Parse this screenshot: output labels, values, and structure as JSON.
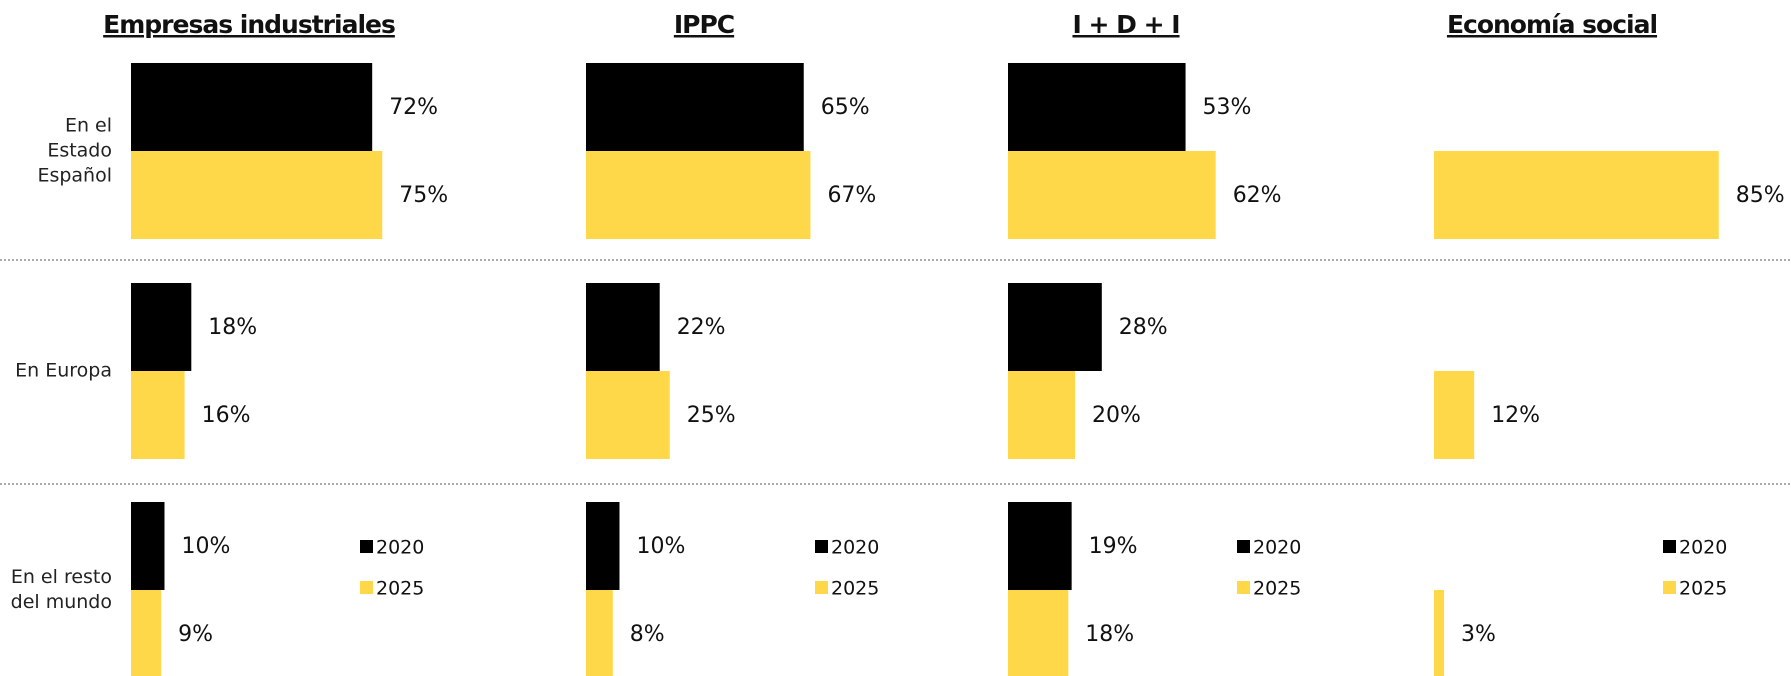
{
  "categories": [
    "En el Estado Español",
    "En Europa",
    "En el resto del mundo"
  ],
  "chart_data": [
    {
      "type": "bar",
      "orientation": "horizontal",
      "title": "Empresas industriales",
      "series": [
        {
          "name": "2020",
          "color": "#000000",
          "values": [
            72,
            18,
            10
          ],
          "value_labels": [
            "72%",
            "18%",
            "10%"
          ]
        },
        {
          "name": "2025",
          "color": "#ffd84a",
          "values": [
            75,
            16,
            9
          ],
          "value_labels": [
            "75%",
            "16%",
            "9%"
          ]
        }
      ]
    },
    {
      "type": "bar",
      "orientation": "horizontal",
      "title": "IPPC",
      "series": [
        {
          "name": "2020",
          "color": "#000000",
          "values": [
            65,
            22,
            10
          ],
          "value_labels": [
            "65%",
            "22%",
            "10%"
          ]
        },
        {
          "name": "2025",
          "color": "#ffd84a",
          "values": [
            67,
            25,
            8
          ],
          "value_labels": [
            "67%",
            "25%",
            "8%"
          ]
        }
      ]
    },
    {
      "type": "bar",
      "orientation": "horizontal",
      "title": "I + D + I",
      "series": [
        {
          "name": "2020",
          "color": "#000000",
          "values": [
            53,
            28,
            19
          ],
          "value_labels": [
            "53%",
            "28%",
            "19%"
          ]
        },
        {
          "name": "2025",
          "color": "#ffd84a",
          "values": [
            62,
            20,
            18
          ],
          "value_labels": [
            "62%",
            "20%",
            "18%"
          ]
        }
      ]
    },
    {
      "type": "bar",
      "orientation": "horizontal",
      "title": "Economía social",
      "series": [
        {
          "name": "2020",
          "color": "#000000",
          "values": [
            null,
            null,
            null
          ],
          "value_labels": [
            null,
            null,
            null
          ]
        },
        {
          "name": "2025",
          "color": "#ffd84a",
          "values": [
            85,
            12,
            3
          ],
          "value_labels": [
            "85%",
            "12%",
            "3%"
          ]
        }
      ]
    }
  ]
}
